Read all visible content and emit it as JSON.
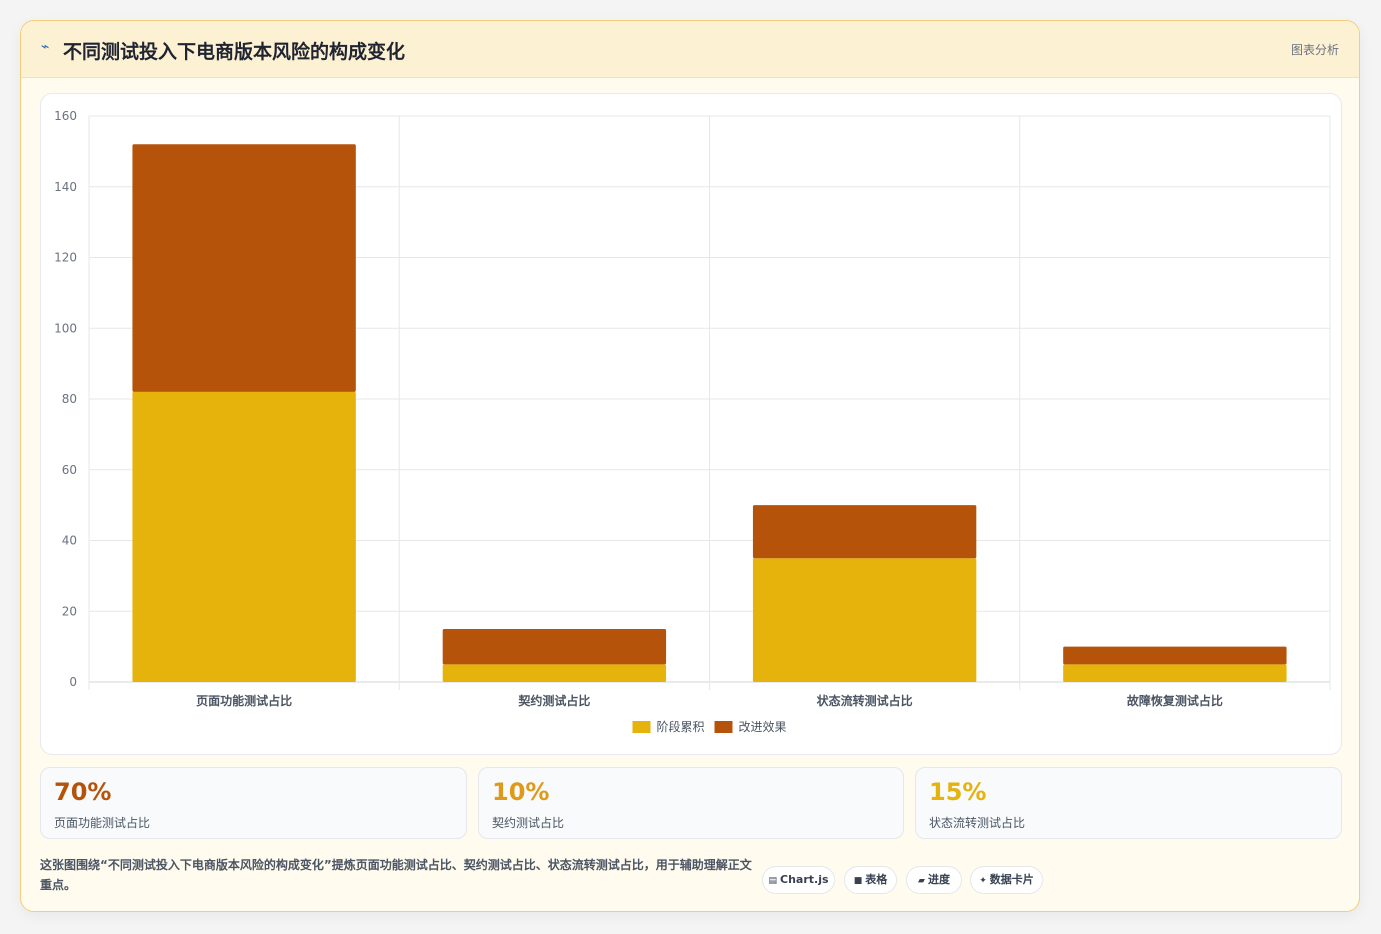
{
  "header": {
    "icon": "lightning-icon",
    "title": "不同测试投入下电商版本风险的构成变化",
    "tag": "图表分析"
  },
  "chart_data": {
    "type": "bar",
    "stacked": true,
    "categories": [
      "页面功能测试占比",
      "契约测试占比",
      "状态流转测试占比",
      "故障恢复测试占比"
    ],
    "series": [
      {
        "name": "阶段累积",
        "color": "#e6b20c",
        "values": [
          82,
          5,
          35,
          5
        ]
      },
      {
        "name": "改进效果",
        "color": "#b5530b",
        "values": [
          70,
          10,
          15,
          5
        ]
      }
    ],
    "ylim": [
      0,
      160
    ],
    "yticks": [
      0,
      20,
      40,
      60,
      80,
      100,
      120,
      140,
      160
    ],
    "grid": true,
    "legend": "bottom"
  },
  "stats": [
    {
      "value": "70%",
      "label": "页面功能测试占比",
      "color": "#b5530b"
    },
    {
      "value": "10%",
      "label": "契约测试占比",
      "color": "#e09a1a"
    },
    {
      "value": "15%",
      "label": "状态流转测试占比",
      "color": "#e6b20c"
    }
  ],
  "description": "这张图围绕“不同测试投入下电商版本风险的构成变化”提炼页面功能测试占比、契约测试占比、状态流转测试占比，用于辅助理解正文重点。",
  "chips": [
    {
      "icon": "chart-icon",
      "glyph": "▤",
      "label": "Chart.js"
    },
    {
      "icon": "table-icon",
      "glyph": "■",
      "label": "表格"
    },
    {
      "icon": "progress-icon",
      "glyph": "▰",
      "label": "进度"
    },
    {
      "icon": "sparkle-icon",
      "glyph": "✦",
      "label": "数据卡片"
    }
  ]
}
